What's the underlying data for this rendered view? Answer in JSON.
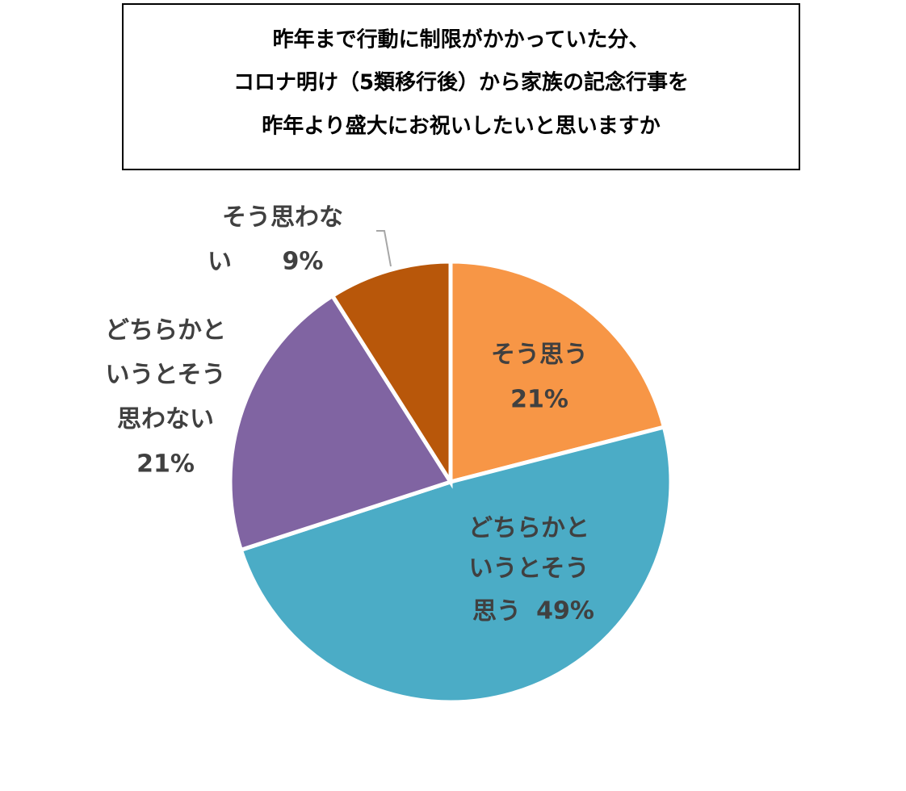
{
  "chart_data": {
    "type": "pie",
    "title": [
      "昨年まで行動に制限がかかっていた分、",
      "コロナ明け（5類移行後）から家族の記念行事を",
      "昨年より盛大にお祝いしたいと思いますか"
    ],
    "categories": [
      "そう思う",
      "どちらかというとそう思う",
      "どちらかというとそう思わない",
      "そう思わない"
    ],
    "values": [
      21,
      49,
      21,
      9
    ],
    "value_labels": [
      "21%",
      "49%",
      "21%",
      "9%"
    ],
    "colors": [
      "#f79646",
      "#4bacc6",
      "#8064a2",
      "#b8570a"
    ]
  }
}
